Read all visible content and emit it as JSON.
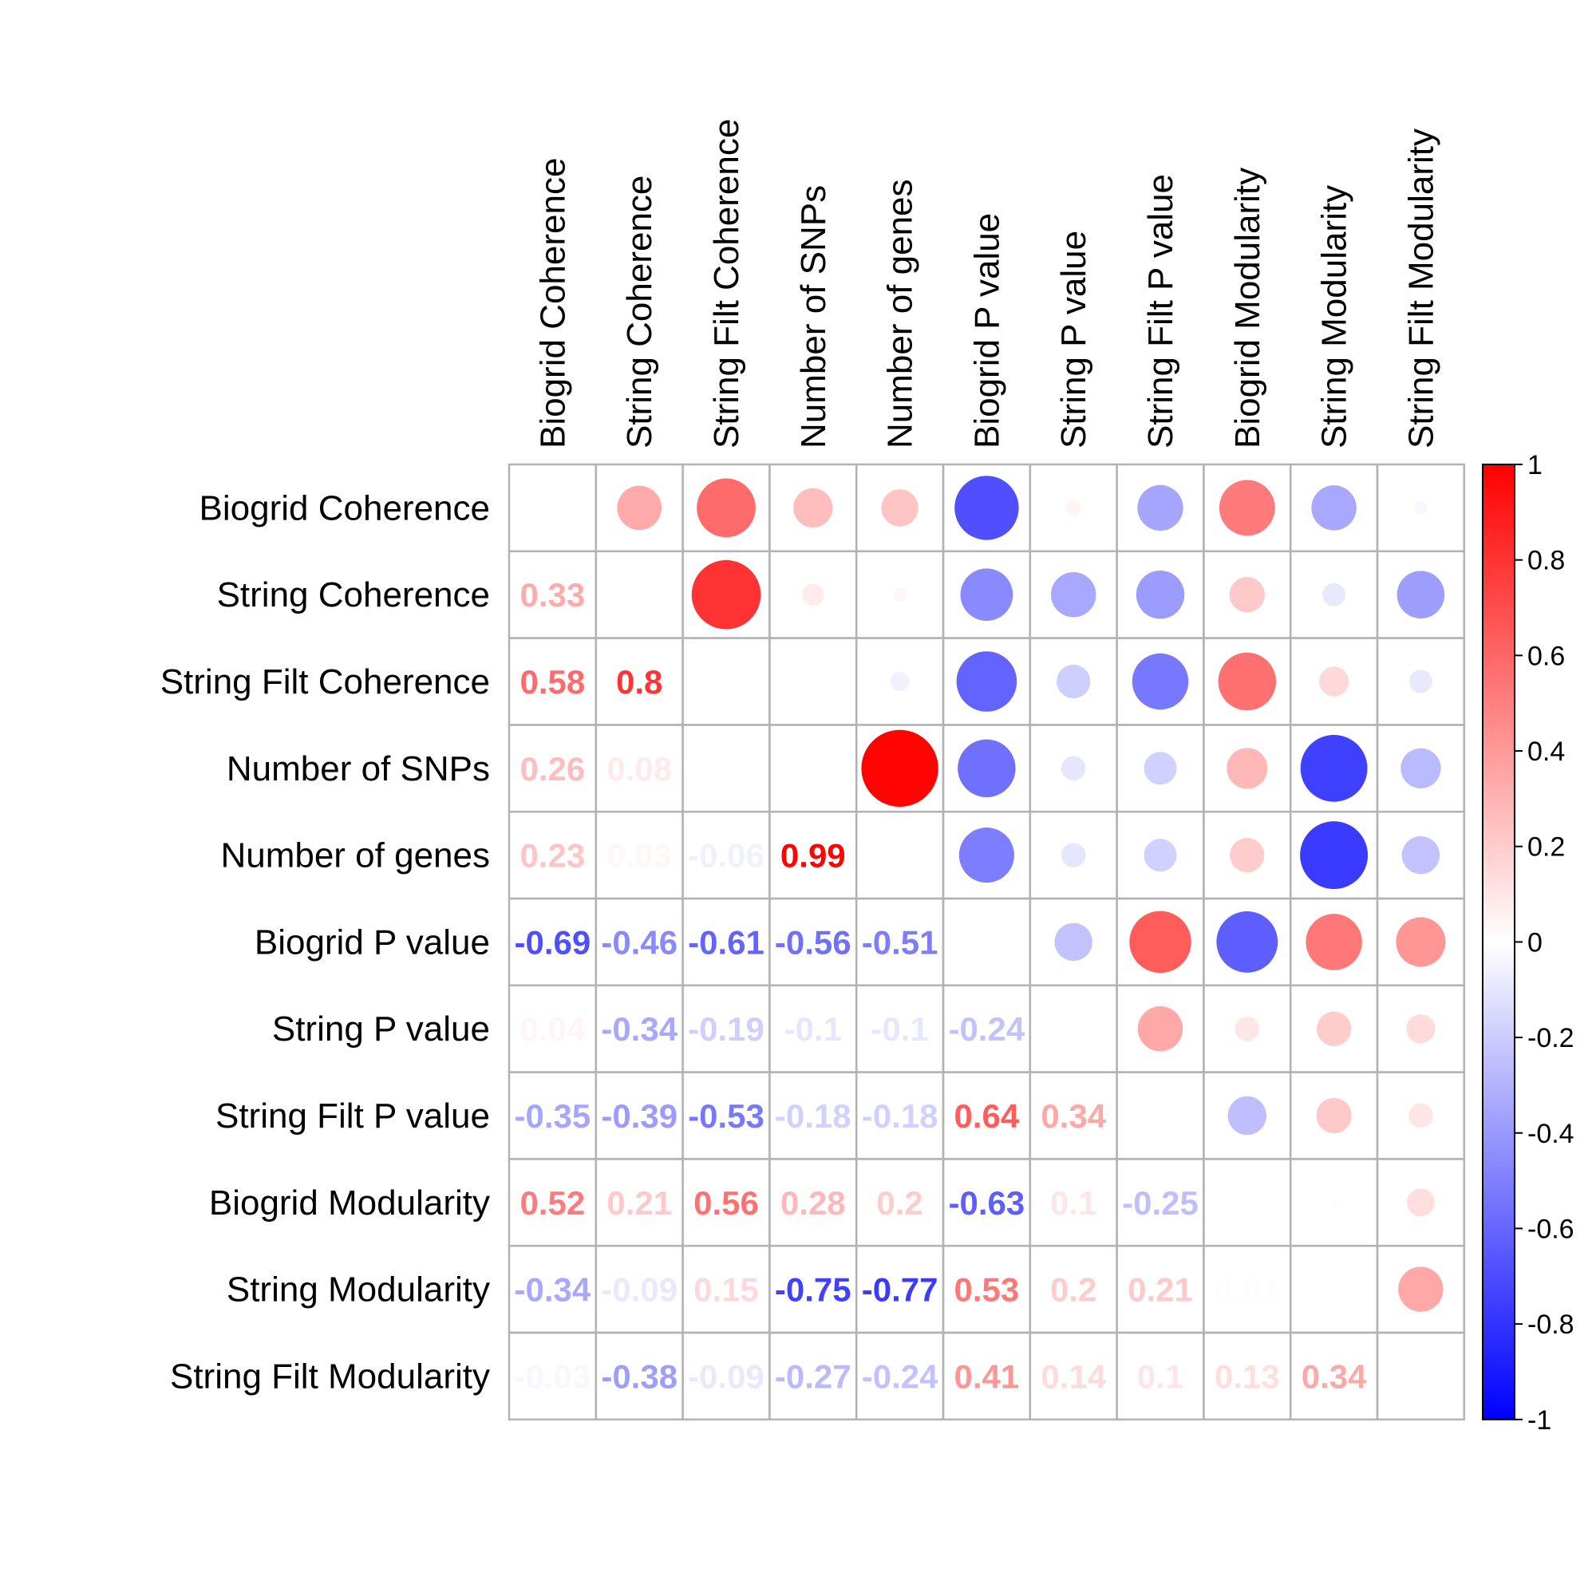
{
  "chart_data": {
    "type": "heatmap",
    "variables": [
      "Biogrid Coherence",
      "String Coherence",
      "String Filt Coherence",
      "Number of SNPs",
      "Number of genes",
      "Biogrid P value",
      "String P value",
      "String Filt P value",
      "Biogrid Modularity",
      "String Modularity",
      "String Filt Modularity"
    ],
    "matrix": [
      [
        1,
        0.33,
        0.58,
        0.26,
        0.23,
        -0.69,
        0.04,
        -0.35,
        0.52,
        -0.34,
        -0.03
      ],
      [
        0.33,
        1,
        0.8,
        0.08,
        0.03,
        -0.46,
        -0.34,
        -0.39,
        0.21,
        -0.09,
        -0.38
      ],
      [
        0.58,
        0.8,
        1,
        0,
        -0.06,
        -0.61,
        -0.19,
        -0.53,
        0.56,
        0.15,
        -0.09
      ],
      [
        0.26,
        0.08,
        0,
        1,
        0.99,
        -0.56,
        -0.1,
        -0.18,
        0.28,
        -0.75,
        -0.27
      ],
      [
        0.23,
        0.03,
        -0.06,
        0.99,
        1,
        -0.51,
        -0.1,
        -0.18,
        0.2,
        -0.77,
        -0.24
      ],
      [
        -0.69,
        -0.46,
        -0.61,
        -0.56,
        -0.51,
        1,
        -0.24,
        0.64,
        -0.63,
        0.53,
        0.41
      ],
      [
        0.04,
        -0.34,
        -0.19,
        -0.1,
        -0.1,
        -0.24,
        1,
        0.34,
        0.1,
        0.2,
        0.14
      ],
      [
        -0.35,
        -0.39,
        -0.53,
        -0.18,
        -0.18,
        0.64,
        0.34,
        1,
        -0.25,
        0.21,
        0.1
      ],
      [
        0.52,
        0.21,
        0.56,
        0.28,
        0.2,
        -0.63,
        0.1,
        -0.25,
        1,
        0.01,
        0.13
      ],
      [
        -0.34,
        -0.09,
        0.15,
        -0.75,
        -0.77,
        0.53,
        0.2,
        0.21,
        0.01,
        1,
        0.34
      ],
      [
        -0.03,
        -0.38,
        -0.09,
        -0.27,
        -0.24,
        0.41,
        0.14,
        0.1,
        0.13,
        0.34,
        1
      ]
    ],
    "upper_triangle": "circle",
    "lower_triangle": "number",
    "diagonal": "blank",
    "color_range": [
      -1,
      1
    ],
    "colors": {
      "low": "#0000ff",
      "mid": "#ffffff",
      "high": "#ff0000"
    },
    "legend": {
      "position": "right",
      "ticks": [
        "1",
        "0.8",
        "0.6",
        "0.4",
        "0.2",
        "0",
        "-0.2",
        "-0.4",
        "-0.6",
        "-0.8",
        "-1"
      ]
    },
    "grid": true
  }
}
